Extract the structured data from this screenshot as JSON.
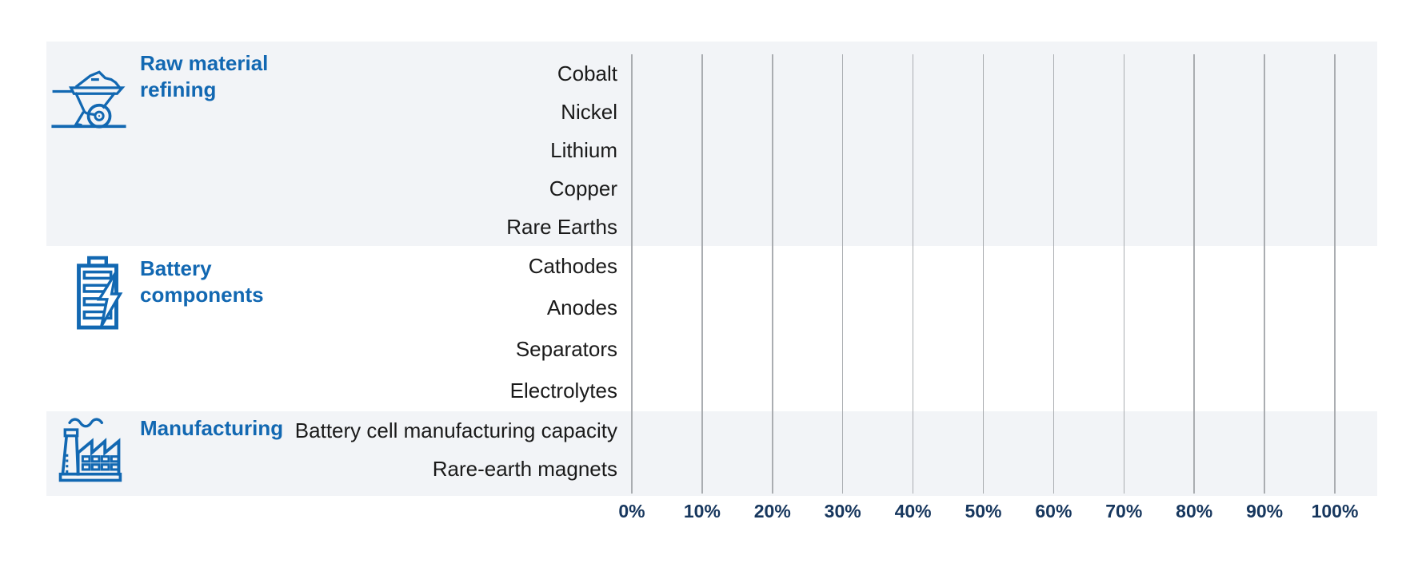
{
  "chart_data": {
    "type": "bar",
    "orientation": "horizontal",
    "groups": [
      {
        "label": "Raw material refining",
        "icon": "wheelbarrow-icon",
        "rows": [
          "Cobalt",
          "Nickel",
          "Lithium",
          "Copper",
          "Rare Earths"
        ]
      },
      {
        "label": "Battery components",
        "icon": "battery-icon",
        "rows": [
          "Cathodes",
          "Anodes",
          "Separators",
          "Electrolytes"
        ]
      },
      {
        "label": "Manufacturing",
        "icon": "factory-icon",
        "rows": [
          "Battery cell manufacturing capacity",
          "Rare-earth magnets"
        ]
      }
    ],
    "series": [],
    "x_axis": {
      "min": 0,
      "max": 100,
      "unit": "%",
      "grid": true,
      "ticks": [
        "0%",
        "10%",
        "20%",
        "30%",
        "40%",
        "50%",
        "60%",
        "70%",
        "80%",
        "90%",
        "100%"
      ]
    },
    "layout_hints": {
      "striped_row_groups": true,
      "legend": "none"
    }
  },
  "colors": {
    "accent_blue": "#1268b2",
    "axis_label_navy": "#17375e",
    "stripe_background": "#f2f4f7",
    "gridline_gray": "#aaadb1",
    "row_label_text": "#1a1a1a"
  }
}
